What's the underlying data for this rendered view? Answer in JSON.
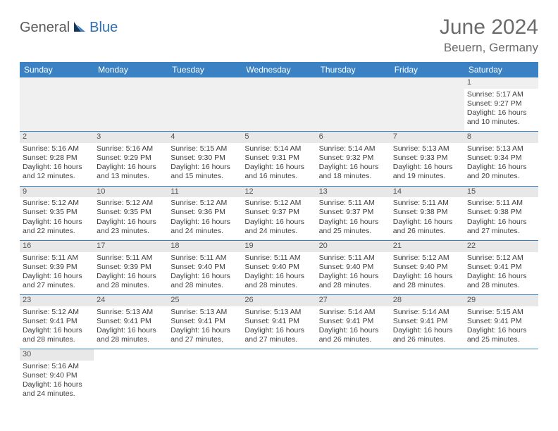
{
  "logo": {
    "part1": "General",
    "part2": "Blue"
  },
  "title": "June 2024",
  "location": "Beuern, Germany",
  "weekdays": [
    "Sunday",
    "Monday",
    "Tuesday",
    "Wednesday",
    "Thursday",
    "Friday",
    "Saturday"
  ],
  "colors": {
    "header_bg": "#3a82c4",
    "header_text": "#ffffff",
    "daynum_bg": "#e8e8e8",
    "cell_border": "#3a82c4",
    "title_color": "#6b6b6b",
    "logo_gray": "#5a5a5a",
    "logo_blue": "#2f6fb3",
    "body_text": "#404040",
    "background": "#ffffff"
  },
  "typography": {
    "title_fontsize": 30,
    "location_fontsize": 17,
    "weekday_fontsize": 12,
    "cell_fontsize": 10.5,
    "logo_fontsize": 20
  },
  "layout": {
    "leading_blanks": 6,
    "columns": 7
  },
  "days": [
    {
      "n": "1",
      "sunrise": "Sunrise: 5:17 AM",
      "sunset": "Sunset: 9:27 PM",
      "daylight": "Daylight: 16 hours and 10 minutes."
    },
    {
      "n": "2",
      "sunrise": "Sunrise: 5:16 AM",
      "sunset": "Sunset: 9:28 PM",
      "daylight": "Daylight: 16 hours and 12 minutes."
    },
    {
      "n": "3",
      "sunrise": "Sunrise: 5:16 AM",
      "sunset": "Sunset: 9:29 PM",
      "daylight": "Daylight: 16 hours and 13 minutes."
    },
    {
      "n": "4",
      "sunrise": "Sunrise: 5:15 AM",
      "sunset": "Sunset: 9:30 PM",
      "daylight": "Daylight: 16 hours and 15 minutes."
    },
    {
      "n": "5",
      "sunrise": "Sunrise: 5:14 AM",
      "sunset": "Sunset: 9:31 PM",
      "daylight": "Daylight: 16 hours and 16 minutes."
    },
    {
      "n": "6",
      "sunrise": "Sunrise: 5:14 AM",
      "sunset": "Sunset: 9:32 PM",
      "daylight": "Daylight: 16 hours and 18 minutes."
    },
    {
      "n": "7",
      "sunrise": "Sunrise: 5:13 AM",
      "sunset": "Sunset: 9:33 PM",
      "daylight": "Daylight: 16 hours and 19 minutes."
    },
    {
      "n": "8",
      "sunrise": "Sunrise: 5:13 AM",
      "sunset": "Sunset: 9:34 PM",
      "daylight": "Daylight: 16 hours and 20 minutes."
    },
    {
      "n": "9",
      "sunrise": "Sunrise: 5:12 AM",
      "sunset": "Sunset: 9:35 PM",
      "daylight": "Daylight: 16 hours and 22 minutes."
    },
    {
      "n": "10",
      "sunrise": "Sunrise: 5:12 AM",
      "sunset": "Sunset: 9:35 PM",
      "daylight": "Daylight: 16 hours and 23 minutes."
    },
    {
      "n": "11",
      "sunrise": "Sunrise: 5:12 AM",
      "sunset": "Sunset: 9:36 PM",
      "daylight": "Daylight: 16 hours and 24 minutes."
    },
    {
      "n": "12",
      "sunrise": "Sunrise: 5:12 AM",
      "sunset": "Sunset: 9:37 PM",
      "daylight": "Daylight: 16 hours and 24 minutes."
    },
    {
      "n": "13",
      "sunrise": "Sunrise: 5:11 AM",
      "sunset": "Sunset: 9:37 PM",
      "daylight": "Daylight: 16 hours and 25 minutes."
    },
    {
      "n": "14",
      "sunrise": "Sunrise: 5:11 AM",
      "sunset": "Sunset: 9:38 PM",
      "daylight": "Daylight: 16 hours and 26 minutes."
    },
    {
      "n": "15",
      "sunrise": "Sunrise: 5:11 AM",
      "sunset": "Sunset: 9:38 PM",
      "daylight": "Daylight: 16 hours and 27 minutes."
    },
    {
      "n": "16",
      "sunrise": "Sunrise: 5:11 AM",
      "sunset": "Sunset: 9:39 PM",
      "daylight": "Daylight: 16 hours and 27 minutes."
    },
    {
      "n": "17",
      "sunrise": "Sunrise: 5:11 AM",
      "sunset": "Sunset: 9:39 PM",
      "daylight": "Daylight: 16 hours and 28 minutes."
    },
    {
      "n": "18",
      "sunrise": "Sunrise: 5:11 AM",
      "sunset": "Sunset: 9:40 PM",
      "daylight": "Daylight: 16 hours and 28 minutes."
    },
    {
      "n": "19",
      "sunrise": "Sunrise: 5:11 AM",
      "sunset": "Sunset: 9:40 PM",
      "daylight": "Daylight: 16 hours and 28 minutes."
    },
    {
      "n": "20",
      "sunrise": "Sunrise: 5:11 AM",
      "sunset": "Sunset: 9:40 PM",
      "daylight": "Daylight: 16 hours and 28 minutes."
    },
    {
      "n": "21",
      "sunrise": "Sunrise: 5:12 AM",
      "sunset": "Sunset: 9:40 PM",
      "daylight": "Daylight: 16 hours and 28 minutes."
    },
    {
      "n": "22",
      "sunrise": "Sunrise: 5:12 AM",
      "sunset": "Sunset: 9:41 PM",
      "daylight": "Daylight: 16 hours and 28 minutes."
    },
    {
      "n": "23",
      "sunrise": "Sunrise: 5:12 AM",
      "sunset": "Sunset: 9:41 PM",
      "daylight": "Daylight: 16 hours and 28 minutes."
    },
    {
      "n": "24",
      "sunrise": "Sunrise: 5:13 AM",
      "sunset": "Sunset: 9:41 PM",
      "daylight": "Daylight: 16 hours and 28 minutes."
    },
    {
      "n": "25",
      "sunrise": "Sunrise: 5:13 AM",
      "sunset": "Sunset: 9:41 PM",
      "daylight": "Daylight: 16 hours and 27 minutes."
    },
    {
      "n": "26",
      "sunrise": "Sunrise: 5:13 AM",
      "sunset": "Sunset: 9:41 PM",
      "daylight": "Daylight: 16 hours and 27 minutes."
    },
    {
      "n": "27",
      "sunrise": "Sunrise: 5:14 AM",
      "sunset": "Sunset: 9:41 PM",
      "daylight": "Daylight: 16 hours and 26 minutes."
    },
    {
      "n": "28",
      "sunrise": "Sunrise: 5:14 AM",
      "sunset": "Sunset: 9:41 PM",
      "daylight": "Daylight: 16 hours and 26 minutes."
    },
    {
      "n": "29",
      "sunrise": "Sunrise: 5:15 AM",
      "sunset": "Sunset: 9:41 PM",
      "daylight": "Daylight: 16 hours and 25 minutes."
    },
    {
      "n": "30",
      "sunrise": "Sunrise: 5:16 AM",
      "sunset": "Sunset: 9:40 PM",
      "daylight": "Daylight: 16 hours and 24 minutes."
    }
  ]
}
